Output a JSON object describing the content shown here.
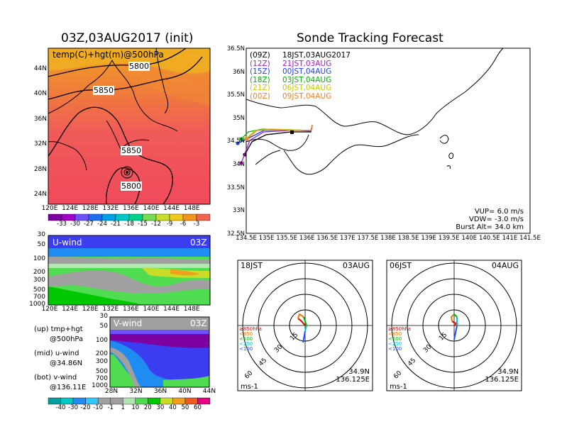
{
  "left_title": "03Z,03AUG2017 (init)",
  "right_title": "Sonde Tracking Forecast",
  "map_panel": {
    "label": "temp(C)+hgt(m)@500hPa",
    "contours": [
      "5800",
      "5850",
      "5850",
      "5800"
    ],
    "lat_labels": [
      "44N",
      "40N",
      "36N",
      "32N",
      "28N",
      "24N"
    ],
    "lon_labels": [
      "120E",
      "124E",
      "128E",
      "132E",
      "136E",
      "140E",
      "144E",
      "148E"
    ],
    "colorbar_labels": [
      "-33",
      "-30",
      "-27",
      "-24",
      "-21",
      "-18",
      "-15",
      "-12",
      "-9",
      "-6",
      "-3"
    ]
  },
  "uwind_panel": {
    "label": "U-wind",
    "time": "03Z",
    "pressure_labels": [
      "30",
      "50",
      "100",
      "200",
      "300",
      "500",
      "700",
      "1000"
    ],
    "lon_labels": [
      "120E",
      "124E",
      "128E",
      "132E",
      "136E",
      "140E",
      "144E",
      "148E"
    ]
  },
  "vwind_panel": {
    "label": "V-wind",
    "time": "03Z",
    "pressure_labels": [
      "30",
      "50",
      "100",
      "200",
      "300",
      "500",
      "700",
      "1000"
    ],
    "lat_labels": [
      "28N",
      "32N",
      "36N",
      "40N",
      "44N"
    ]
  },
  "legend_notes": [
    [
      "(up)  tmp+hgt",
      "@500hPa"
    ],
    [
      "(mid)  u-wind",
      "@34.86N"
    ],
    [
      "(bot)  v-wind",
      "@136.11E"
    ]
  ],
  "wind_colorbar_labels": [
    "-40",
    "-30",
    "-20",
    "-10",
    "-1",
    "1",
    "10",
    "20",
    "30",
    "40",
    "50",
    "60"
  ],
  "track_panel": {
    "lat_labels": [
      "36.5N",
      "36N",
      "35.5N",
      "35N",
      "34.5N",
      "34N",
      "33.5N",
      "33N",
      "32.5N"
    ],
    "lon_labels": [
      "134.5E",
      "135E",
      "135.5E",
      "136E",
      "136.5E",
      "137E",
      "137.5E",
      "138E",
      "138.5E",
      "139E",
      "139.5E",
      "140E",
      "140.5E",
      "141E",
      "141.5E"
    ],
    "legend": [
      {
        "time": "(09Z)",
        "label": "18JST,03AUG2017",
        "color": "#000000"
      },
      {
        "time": "(12Z)",
        "label": "21JST,03AUG",
        "color": "#a020c0"
      },
      {
        "time": "(15Z)",
        "label": "00JST,04AUG",
        "color": "#1e3cff"
      },
      {
        "time": "(18Z)",
        "label": "03JST,04AUG",
        "color": "#00b400"
      },
      {
        "time": "(21Z)",
        "label": "06JST,04AUG",
        "color": "#c8c800"
      },
      {
        "time": "(00Z)",
        "label": "09JST,04AUG",
        "color": "#f08228"
      }
    ],
    "info": [
      "VUP=  6.0  m/s",
      "VDW= -3.0  m/s",
      "Burst Alt=  34.0  km"
    ]
  },
  "hodographs": [
    {
      "left_label": "18JST",
      "right_label": "03AUG",
      "rings": [
        "15",
        "30",
        "45",
        "60"
      ],
      "unit": "ms-1",
      "lat": "34.9N",
      "lon": "136.125E",
      "levels": [
        "≥850hPa",
        "<850",
        "<500",
        "<250",
        "<100"
      ]
    },
    {
      "left_label": "06JST",
      "right_label": "04AUG",
      "rings": [
        "15",
        "30",
        "45",
        "60"
      ],
      "unit": "ms-1",
      "lat": "34.9N",
      "lon": "136.125E",
      "levels": [
        "≥850hPa",
        "<850",
        "<500",
        "<250",
        "<100"
      ]
    }
  ],
  "colors": {
    "temp_scale": [
      "#7d00a0",
      "#a000c8",
      "#6e50ff",
      "#1e6ef0",
      "#00a0e6",
      "#00c8c8",
      "#00d28c",
      "#78dc50",
      "#c8dc28",
      "#f0c81e",
      "#f0961e",
      "#f06450"
    ],
    "wind_scale": [
      "#00a0a0",
      "#00c8c8",
      "#1e8cf0",
      "#32c8ff",
      "#a0a0a0",
      "#a0a0a0",
      "#b4e6b4",
      "#50dc50",
      "#00c800",
      "#c8dc28",
      "#f0a01e",
      "#f05a1e",
      "#e60082"
    ]
  }
}
